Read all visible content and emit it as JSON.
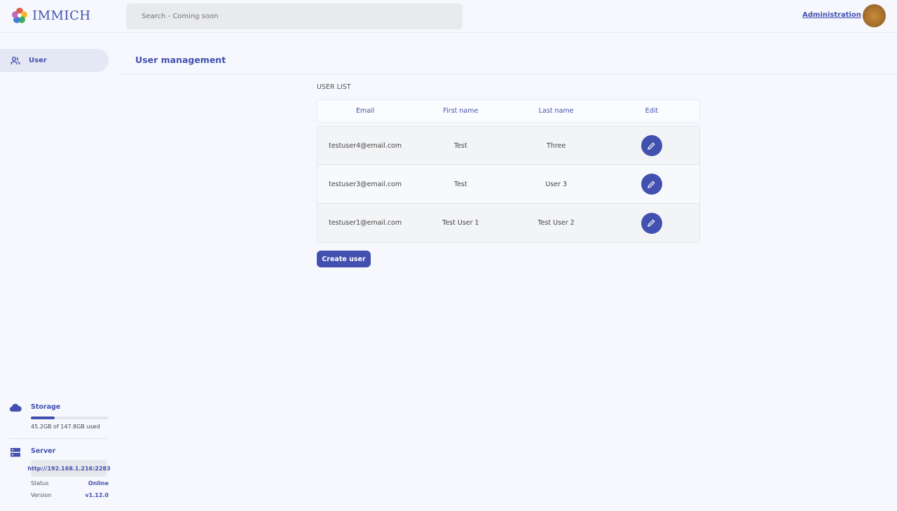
{
  "header": {
    "logo_text": "IMMICH",
    "search_placeholder": "Search - Coming soon",
    "admin_link": "Administration"
  },
  "sidebar": {
    "items": [
      {
        "label": "User",
        "icon": "users-icon"
      }
    ],
    "storage": {
      "label": "Storage",
      "usage_text": "45.2GB of 147.8GB used",
      "used_fraction": 0.306
    },
    "server": {
      "label": "Server",
      "url": "http://192.168.1.216:2283",
      "status_label": "Status",
      "status_value": "Online",
      "version_label": "Version",
      "version_value": "v1.12.0"
    }
  },
  "main": {
    "title": "User management",
    "list_title": "USER LIST",
    "columns": [
      "Email",
      "First name",
      "Last name",
      "Edit"
    ],
    "rows": [
      {
        "email": "testuser4@email.com",
        "first": "Test",
        "last": "Three"
      },
      {
        "email": "testuser3@email.com",
        "first": "Test",
        "last": "User 3"
      },
      {
        "email": "testuser1@email.com",
        "first": "Test User 1",
        "last": "Test User 2"
      }
    ],
    "create_button": "Create user"
  },
  "colors": {
    "accent": "#4250af",
    "background": "#f6f8fe"
  }
}
